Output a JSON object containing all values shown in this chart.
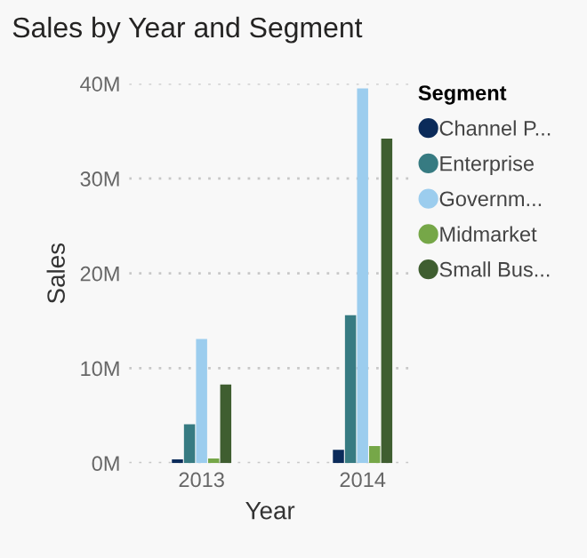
{
  "chart_data": {
    "type": "bar",
    "title": "Sales by Year and Segment",
    "xlabel": "Year",
    "ylabel": "Sales",
    "legend_title": "Segment",
    "categories": [
      "2013",
      "2014"
    ],
    "series": [
      {
        "name": "Channel P...",
        "color": "#0b2b5a",
        "values": [
          0.4,
          1.4
        ]
      },
      {
        "name": "Enterprise",
        "color": "#377b82",
        "values": [
          4.1,
          15.6
        ]
      },
      {
        "name": "Governm...",
        "color": "#9ccdee",
        "values": [
          13.1,
          39.5
        ]
      },
      {
        "name": "Midmarket",
        "color": "#76a748",
        "values": [
          0.5,
          1.8
        ]
      },
      {
        "name": "Small Bus...",
        "color": "#3f5e30",
        "values": [
          8.3,
          34.2
        ]
      }
    ],
    "ylim": [
      0,
      40
    ],
    "yticks": [
      {
        "value": 0,
        "label": "0M"
      },
      {
        "value": 10,
        "label": "10M"
      },
      {
        "value": 20,
        "label": "20M"
      },
      {
        "value": 30,
        "label": "30M"
      },
      {
        "value": 40,
        "label": "40M"
      }
    ],
    "grid": "y",
    "legend": "top right"
  }
}
